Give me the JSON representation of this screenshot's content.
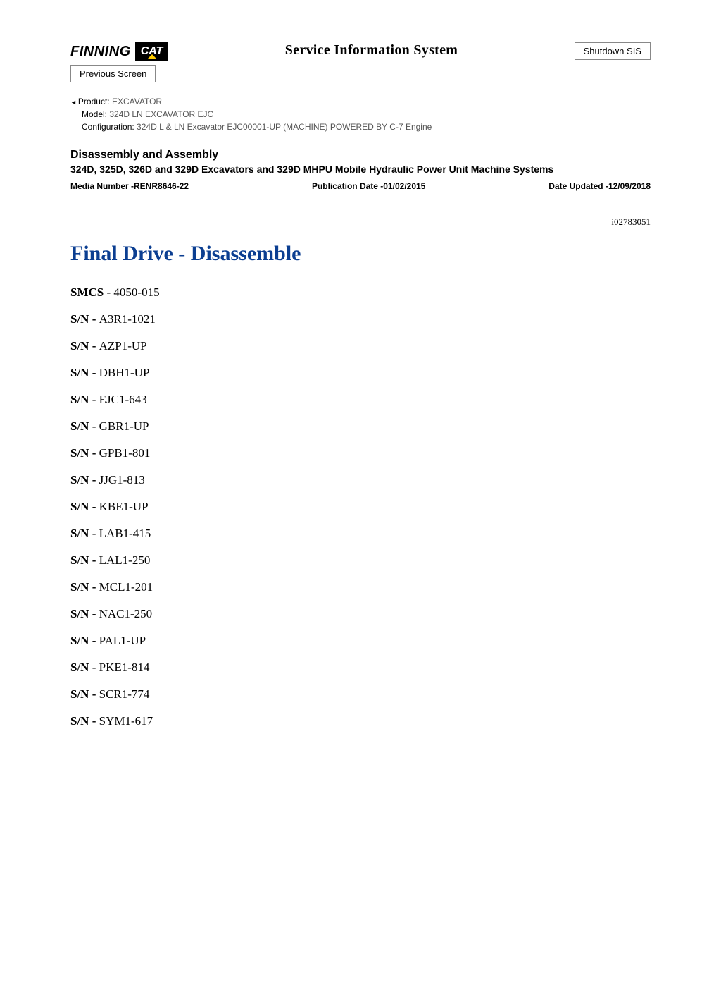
{
  "header": {
    "logo_finning": "FINNING",
    "logo_cat": "CAT",
    "sis_title": "Service Information System",
    "shutdown_btn": "Shutdown SIS",
    "prev_btn": "Previous Screen"
  },
  "meta": {
    "product_label": "Product:",
    "product_value": "  EXCAVATOR",
    "model_label": "Model:",
    "model_value": "  324D LN EXCAVATOR EJC",
    "config_label": "Configuration:",
    "config_value": " 324D L & LN Excavator EJC00001-UP (MACHINE) POWERED BY C-7 Engine"
  },
  "section": {
    "heading": "Disassembly and Assembly",
    "sub": "324D, 325D, 326D and 329D Excavators and 329D MHPU Mobile Hydraulic Power Unit Machine Systems",
    "media_label": "Media Number -",
    "media_value": "RENR8646-22",
    "pubdate_label": "Publication Date -",
    "pubdate_value": "01/02/2015",
    "updated_label": "Date Updated -",
    "updated_value": "12/09/2018"
  },
  "doc_id": "i02783051",
  "title": "Final Drive - Disassemble",
  "smcs": {
    "label": "SMCS - ",
    "value": "4050-015"
  },
  "sn_label": "S/N - ",
  "serials": [
    "A3R1-1021",
    "AZP1-UP",
    "DBH1-UP",
    "EJC1-643",
    "GBR1-UP",
    "GPB1-801",
    "JJG1-813",
    "KBE1-UP",
    "LAB1-415",
    "LAL1-250",
    "MCL1-201",
    "NAC1-250",
    "PAL1-UP",
    "PKE1-814",
    "SCR1-774",
    "SYM1-617"
  ],
  "colors": {
    "title_color": "#0b3e91",
    "meta_gray": "#555555"
  }
}
